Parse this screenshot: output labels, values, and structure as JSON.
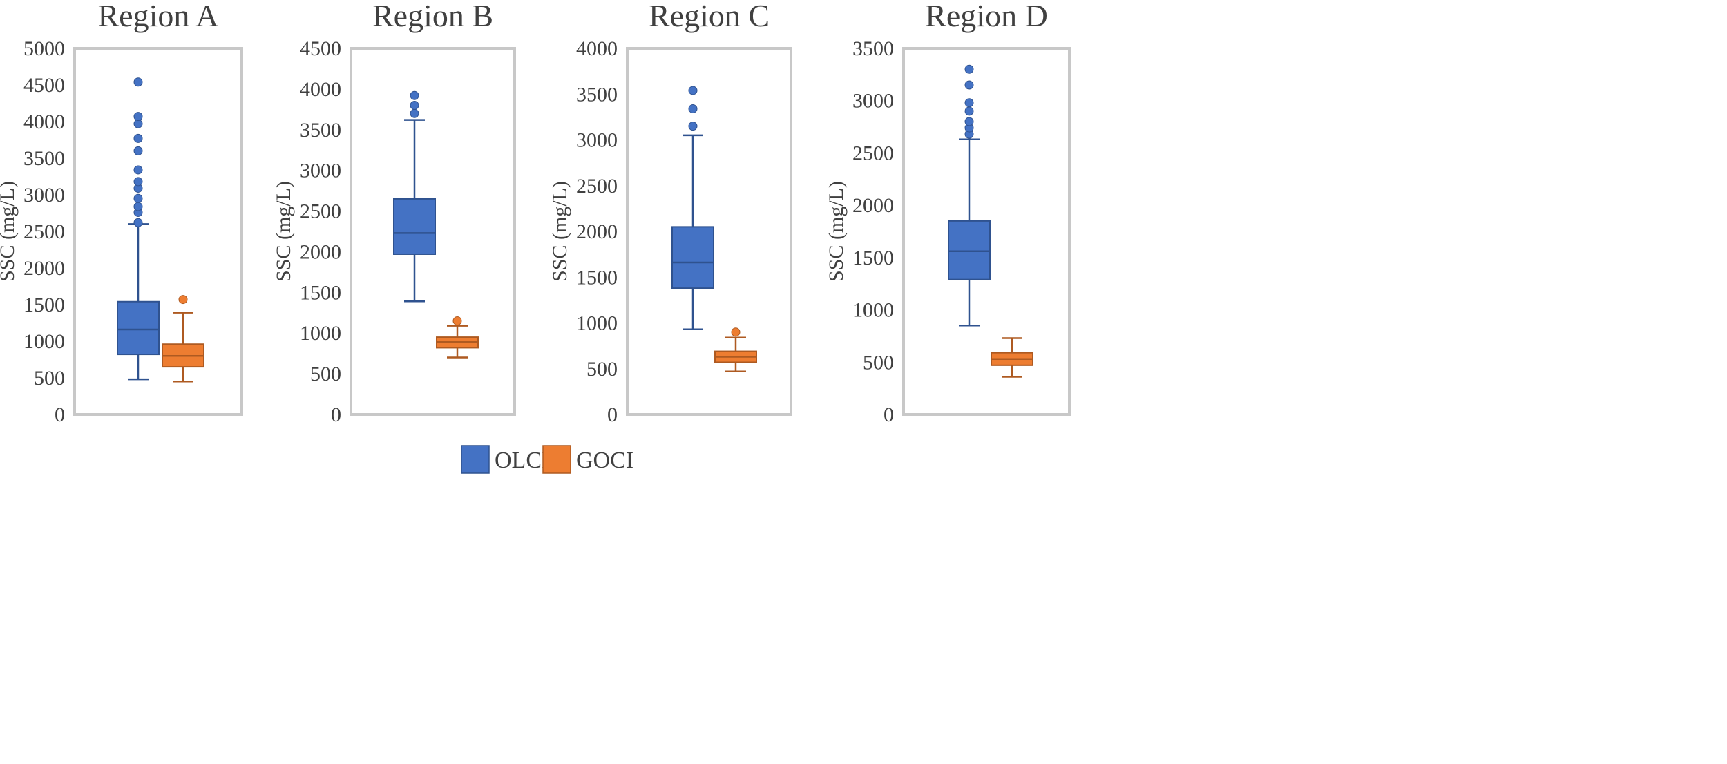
{
  "colors": {
    "olci": "#4472C4",
    "olci_stroke": "#2F528F",
    "goci": "#ED7D31",
    "goci_stroke": "#AE5A21",
    "frame": "#C8C8C8",
    "text": "#404040"
  },
  "legend": [
    {
      "name": "OLCI",
      "color": "#4472C4"
    },
    {
      "name": "GOCI",
      "color": "#ED7D31"
    }
  ],
  "chart_data": [
    {
      "type": "boxplot",
      "title": "Region A",
      "ylabel": "SSC (mg/L)",
      "ylim": [
        0,
        5000
      ],
      "yticks": [
        0,
        500,
        1000,
        1500,
        2000,
        2500,
        3000,
        3500,
        4000,
        4500,
        5000
      ],
      "series": [
        {
          "name": "OLCI",
          "min": 480,
          "q1": 820,
          "median": 1160,
          "q3": 1540,
          "max": 2600,
          "outliers": [
            2620,
            2760,
            2840,
            2950,
            3090,
            3180,
            3340,
            3600,
            3770,
            3970,
            4070,
            4540
          ]
        },
        {
          "name": "GOCI",
          "min": 450,
          "q1": 650,
          "median": 800,
          "q3": 960,
          "max": 1390,
          "outliers": [
            1570
          ]
        }
      ]
    },
    {
      "type": "boxplot",
      "title": "Region B",
      "ylabel": "SSC (mg/L)",
      "ylim": [
        0,
        4500
      ],
      "yticks": [
        0,
        500,
        1000,
        1500,
        2000,
        2500,
        3000,
        3500,
        4000,
        4500
      ],
      "series": [
        {
          "name": "OLCI",
          "min": 1390,
          "q1": 1970,
          "median": 2230,
          "q3": 2650,
          "max": 3620,
          "outliers": [
            3700,
            3800,
            3920
          ]
        },
        {
          "name": "GOCI",
          "min": 700,
          "q1": 820,
          "median": 890,
          "q3": 950,
          "max": 1090,
          "outliers": [
            1150
          ]
        }
      ]
    },
    {
      "type": "boxplot",
      "title": "Region C",
      "ylabel": "SSC (mg/L)",
      "ylim": [
        0,
        4000
      ],
      "yticks": [
        0,
        500,
        1000,
        1500,
        2000,
        2500,
        3000,
        3500,
        4000
      ],
      "series": [
        {
          "name": "OLCI",
          "min": 930,
          "q1": 1380,
          "median": 1660,
          "q3": 2050,
          "max": 3050,
          "outliers": [
            3150,
            3340,
            3540
          ]
        },
        {
          "name": "GOCI",
          "min": 470,
          "q1": 570,
          "median": 630,
          "q3": 690,
          "max": 840,
          "outliers": [
            900
          ]
        }
      ]
    },
    {
      "type": "boxplot",
      "title": "Region D",
      "ylabel": "SSC (mg/L)",
      "ylim": [
        0,
        3500
      ],
      "yticks": [
        0,
        500,
        1000,
        1500,
        2000,
        2500,
        3000,
        3500
      ],
      "series": [
        {
          "name": "OLCI",
          "min": 850,
          "q1": 1290,
          "median": 1560,
          "q3": 1850,
          "max": 2630,
          "outliers": [
            2680,
            2740,
            2800,
            2900,
            2980,
            3150,
            3300
          ]
        },
        {
          "name": "GOCI",
          "min": 360,
          "q1": 470,
          "median": 530,
          "q3": 590,
          "max": 730,
          "outliers": []
        }
      ]
    }
  ]
}
